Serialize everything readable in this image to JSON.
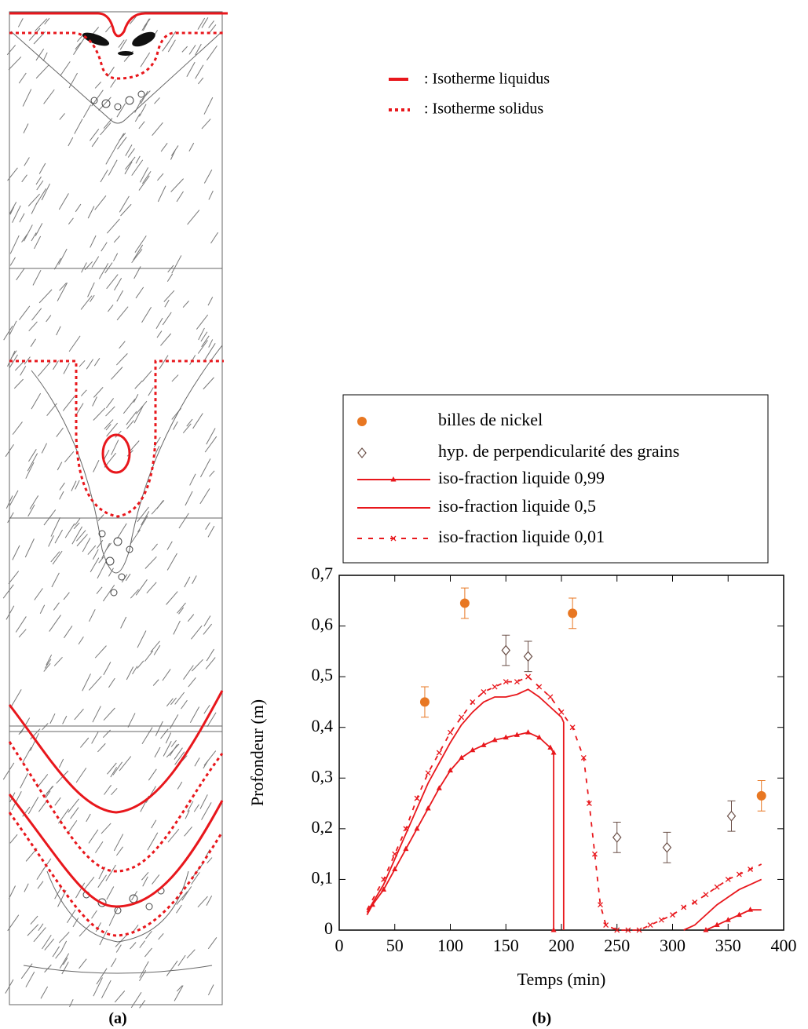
{
  "panel_a": {
    "legend": [
      ": Isotherme liquidus",
      ": Isotherme solidus"
    ],
    "label": "(a)"
  },
  "panel_b_label": "(b)",
  "chart_data": {
    "type": "scatter-line",
    "x_label": "Temps (min)",
    "y_label": "Profondeur (m)",
    "xlim": [
      0,
      400
    ],
    "xticks": [
      0,
      50,
      100,
      150,
      200,
      250,
      300,
      350,
      400
    ],
    "ylim": [
      0,
      0.7
    ],
    "yticks": [
      0,
      {
        "value": 0.1,
        "label": "0,1"
      },
      {
        "value": 0.2,
        "label": "0,2"
      },
      {
        "value": 0.3,
        "label": "0,3"
      },
      {
        "value": 0.4,
        "label": "0,4"
      },
      {
        "value": 0.5,
        "label": "0,5"
      },
      {
        "value": 0.6,
        "label": "0,6"
      },
      {
        "value": 0.7,
        "label": "0,7"
      }
    ],
    "series": [
      {
        "name": "billes de nickel",
        "color": "#e87722",
        "marker": "circle",
        "line": "none",
        "x": [
          77,
          113,
          210,
          380
        ],
        "values": [
          0.45,
          0.645,
          0.625,
          0.265
        ],
        "errors": [
          0.03,
          0.03,
          0.03,
          0.03
        ]
      },
      {
        "name": "hyp. de perpendicularité des grains",
        "color": "#6b5048",
        "marker": "diamond",
        "line": "none",
        "x": [
          150,
          170,
          250,
          295,
          353
        ],
        "values": [
          0.552,
          0.54,
          0.183,
          0.163,
          0.225
        ],
        "errors": [
          0.03,
          0.03,
          0.03,
          0.03,
          0.03
        ]
      },
      {
        "name": "iso-fraction liquide 0,99",
        "color": "#e8171c",
        "marker": "triangle",
        "line": "solid",
        "x": [
          25,
          30,
          40,
          50,
          60,
          70,
          80,
          90,
          100,
          110,
          120,
          130,
          140,
          150,
          160,
          170,
          180,
          190,
          193,
          193,
          250,
          330,
          340,
          350,
          360,
          370,
          380
        ],
        "values": [
          0.03,
          0.05,
          0.08,
          0.12,
          0.16,
          0.2,
          0.24,
          0.28,
          0.315,
          0.34,
          0.355,
          0.365,
          0.375,
          0.38,
          0.385,
          0.39,
          0.38,
          0.36,
          0.35,
          0,
          null,
          0,
          0.01,
          0.02,
          0.03,
          0.04,
          0.04
        ]
      },
      {
        "name": "iso-fraction liquide 0,5",
        "color": "#e8171c",
        "marker": "none",
        "line": "solid",
        "x": [
          25,
          40,
          50,
          60,
          70,
          80,
          90,
          100,
          110,
          120,
          130,
          140,
          150,
          160,
          170,
          180,
          190,
          200,
          202,
          202,
          250,
          310,
          320,
          330,
          340,
          350,
          360,
          370,
          380
        ],
        "values": [
          0.035,
          0.09,
          0.14,
          0.19,
          0.24,
          0.29,
          0.33,
          0.37,
          0.405,
          0.43,
          0.45,
          0.46,
          0.46,
          0.465,
          0.475,
          0.46,
          0.44,
          0.42,
          0.41,
          0,
          null,
          0,
          0.01,
          0.03,
          0.05,
          0.065,
          0.08,
          0.09,
          0.1
        ]
      },
      {
        "name": "iso-fraction liquide 0,01",
        "color": "#e8171c",
        "marker": "cross",
        "line": "dashed",
        "x": [
          25,
          40,
          50,
          60,
          70,
          80,
          90,
          100,
          110,
          120,
          130,
          140,
          150,
          160,
          170,
          180,
          190,
          200,
          210,
          220,
          225,
          230,
          235,
          240,
          250,
          260,
          270,
          280,
          290,
          300,
          310,
          320,
          330,
          340,
          350,
          360,
          370,
          380
        ],
        "values": [
          0.04,
          0.1,
          0.15,
          0.2,
          0.26,
          0.31,
          0.35,
          0.39,
          0.42,
          0.45,
          0.47,
          0.48,
          0.49,
          0.49,
          0.5,
          0.48,
          0.46,
          0.43,
          0.4,
          0.34,
          0.25,
          0.15,
          0.05,
          0.01,
          0,
          0,
          0,
          0.01,
          0.02,
          0.03,
          0.045,
          0.055,
          0.07,
          0.085,
          0.1,
          0.11,
          0.12,
          0.13
        ]
      }
    ]
  }
}
